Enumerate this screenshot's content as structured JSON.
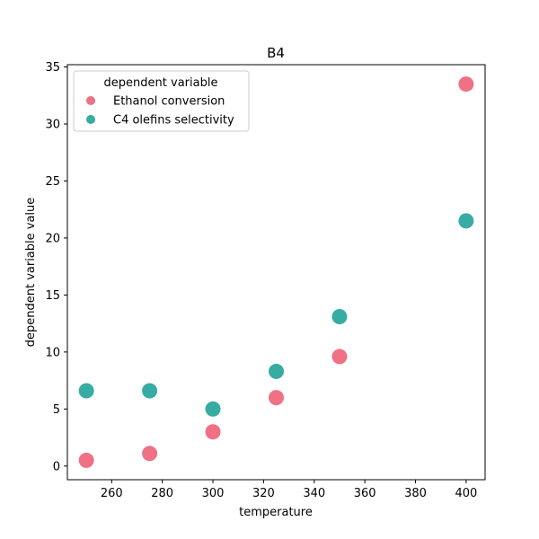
{
  "chart_data": {
    "type": "scatter",
    "title": "B4",
    "xlabel": "temperature",
    "ylabel": "dependent variable value",
    "xlim": [
      242.5,
      407.5
    ],
    "ylim": [
      -1.2,
      35.2
    ],
    "xticks": [
      260,
      280,
      300,
      320,
      340,
      360,
      380,
      400
    ],
    "yticks": [
      0,
      5,
      10,
      15,
      20,
      25,
      30,
      35
    ],
    "grid": false,
    "legend": {
      "title": "dependent variable",
      "placement": "top-left"
    },
    "series": [
      {
        "name": "Ethanol conversion",
        "color": "#f07084",
        "x": [
          250,
          275,
          300,
          325,
          350,
          400
        ],
        "y": [
          0.5,
          1.1,
          3.0,
          6.0,
          9.6,
          33.5
        ]
      },
      {
        "name": "C4 olefins selectivity",
        "color": "#36aca3",
        "x": [
          250,
          275,
          300,
          325,
          350,
          400
        ],
        "y": [
          6.6,
          6.6,
          5.0,
          8.3,
          13.1,
          21.5
        ]
      }
    ]
  }
}
